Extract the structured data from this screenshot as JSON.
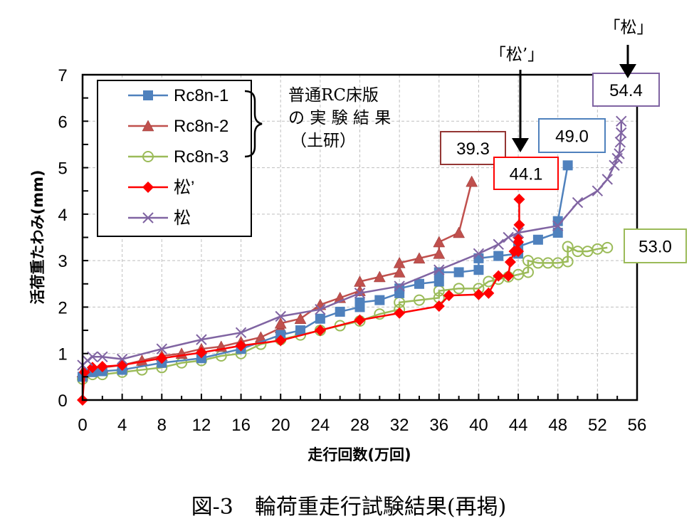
{
  "chart_data": {
    "type": "line",
    "title": "",
    "caption": "図-3　輪荷重走行試験結果(再掲)",
    "xlabel": "走行回数(万回)",
    "ylabel": "活荷重たわみ(mm)",
    "xlim": [
      0,
      56
    ],
    "ylim": [
      0,
      7
    ],
    "x_ticks": [
      0,
      4,
      8,
      12,
      16,
      20,
      24,
      28,
      32,
      36,
      40,
      44,
      48,
      52,
      56
    ],
    "y_ticks": [
      0,
      1,
      2,
      3,
      4,
      5,
      6,
      7
    ],
    "grid": true,
    "legend_position": "top-left",
    "legend_group_note": "普通RC床版の実験結果（土研）",
    "legend_group_note_lines": [
      "普通RC床版",
      "の 実 験 結 果",
      "（土研）"
    ],
    "series": [
      {
        "name": "Rc8n-1",
        "color": "#4F81BD",
        "marker": "square",
        "x": [
          0,
          1,
          2,
          4,
          8,
          12,
          16,
          20,
          22,
          24,
          26,
          28,
          28,
          30,
          32,
          32,
          34,
          36,
          36,
          38,
          40,
          40,
          42,
          44,
          44,
          46,
          48,
          48,
          49
        ],
        "y": [
          0.5,
          0.6,
          0.62,
          0.65,
          0.8,
          0.9,
          1.1,
          1.4,
          1.5,
          1.75,
          1.9,
          2.0,
          2.1,
          2.15,
          2.3,
          2.4,
          2.5,
          2.55,
          2.75,
          2.75,
          2.8,
          3.05,
          3.1,
          3.15,
          3.3,
          3.45,
          3.6,
          3.85,
          5.05
        ]
      },
      {
        "name": "Rc8n-2",
        "color": "#C0504D",
        "marker": "triangle",
        "x": [
          0,
          2,
          4,
          6,
          8,
          10,
          12,
          14,
          16,
          18,
          20,
          20,
          22,
          24,
          26,
          28,
          28,
          30,
          32,
          32,
          34,
          36,
          36,
          38,
          39.3
        ],
        "y": [
          0.6,
          0.7,
          0.75,
          0.85,
          0.95,
          1.0,
          1.1,
          1.15,
          1.25,
          1.35,
          1.55,
          1.65,
          1.75,
          2.05,
          2.2,
          2.35,
          2.55,
          2.65,
          2.75,
          2.95,
          3.05,
          3.15,
          3.4,
          3.6,
          4.7
        ]
      },
      {
        "name": "Rc8n-3",
        "color": "#9BBB59",
        "marker": "circle-open",
        "x": [
          0,
          1,
          2,
          4,
          6,
          8,
          10,
          12,
          14,
          16,
          18,
          20,
          22,
          24,
          26,
          28,
          30,
          32,
          32,
          34,
          36,
          36,
          38,
          40,
          41,
          42,
          43,
          44,
          45,
          45,
          46,
          47,
          48,
          49,
          49,
          50,
          51,
          52,
          53
        ],
        "y": [
          0.45,
          0.55,
          0.55,
          0.6,
          0.65,
          0.7,
          0.8,
          0.85,
          0.95,
          1.0,
          1.2,
          1.3,
          1.4,
          1.5,
          1.6,
          1.7,
          1.85,
          1.95,
          2.1,
          2.15,
          2.2,
          2.35,
          2.4,
          2.4,
          2.55,
          2.6,
          2.65,
          2.7,
          2.75,
          3.0,
          2.95,
          2.95,
          2.95,
          2.98,
          3.3,
          3.2,
          3.2,
          3.25,
          3.28
        ]
      },
      {
        "name": "松’",
        "color": "#FF0000",
        "marker": "diamond",
        "x": [
          0,
          0.2,
          1,
          2,
          4,
          8,
          12,
          16,
          20,
          24,
          28,
          32,
          36,
          37,
          40,
          41,
          42,
          43,
          43.2,
          43.6,
          44,
          44,
          44,
          44.1,
          44.1
        ],
        "y": [
          0,
          0.6,
          0.7,
          0.72,
          0.75,
          0.9,
          1.02,
          1.17,
          1.28,
          1.5,
          1.72,
          1.87,
          2.02,
          2.25,
          2.27,
          2.3,
          2.67,
          2.67,
          2.97,
          3.2,
          3.4,
          3.2,
          3.5,
          3.77,
          4.32
        ]
      },
      {
        "name": "松",
        "color": "#8064A2",
        "marker": "x",
        "x": [
          0,
          0.5,
          1,
          2,
          4,
          8,
          12,
          16,
          20,
          24,
          28,
          32,
          36,
          40,
          42,
          43,
          44,
          48,
          50,
          52,
          53,
          53.7,
          54,
          54.2,
          54.3,
          54.4,
          54.4
        ],
        "y": [
          0.75,
          0.85,
          0.93,
          0.93,
          0.88,
          1.1,
          1.3,
          1.45,
          1.8,
          1.95,
          2.3,
          2.45,
          2.8,
          3.15,
          3.35,
          3.5,
          3.6,
          3.75,
          4.25,
          4.5,
          4.75,
          5.05,
          5.2,
          5.3,
          5.55,
          5.75,
          6.0
        ]
      }
    ],
    "annotations": {
      "final_values": [
        {
          "label": "39.3",
          "series": "Rc8n-2",
          "color": "#943634",
          "at_x": 39.3
        },
        {
          "label": "44.1",
          "series": "松’",
          "color": "#FF0000",
          "at_x": 44.1
        },
        {
          "label": "49.0",
          "series": "Rc8n-1",
          "color": "#4F81BD",
          "at_x": 49.0
        },
        {
          "label": "53.0",
          "series": "Rc8n-3",
          "color": "#9BBB59",
          "at_x": 53.0
        },
        {
          "label": "54.4",
          "series": "松",
          "color": "#8064A2",
          "at_x": 54.4
        }
      ],
      "arrows": [
        {
          "label": "「松’」",
          "points_to_x": 44.1
        },
        {
          "label": "「松」",
          "points_to_x": 54.4
        }
      ]
    }
  }
}
